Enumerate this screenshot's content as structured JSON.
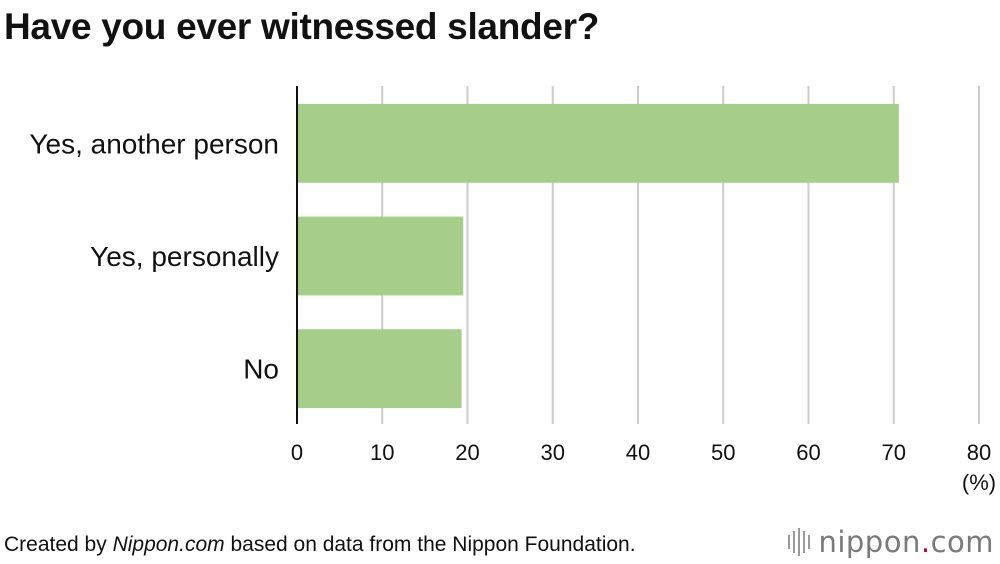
{
  "chart_data": {
    "type": "bar",
    "orientation": "horizontal",
    "title": "Have you ever witnessed slander?",
    "categories": [
      "Yes, another person",
      "Yes, personally",
      "No"
    ],
    "values": [
      70.6,
      19.5,
      19.3
    ],
    "xlim": [
      0,
      80
    ],
    "xticks": [
      "0",
      "10",
      "20",
      "30",
      "40",
      "50",
      "60",
      "70",
      "80"
    ],
    "unit_label": "(%)",
    "grid": true,
    "legend": "none",
    "bar_color": "#a7cd8b",
    "grid_color": "#cccccc",
    "axis_color": "#111111"
  },
  "footer": {
    "prefix": "Created by ",
    "source_name": "Nippon.com",
    "suffix": " based on data from the Nippon Foundation."
  },
  "logo": {
    "text_main": "nippon",
    "text_dot": ".",
    "text_tld": "com",
    "dot_color": "#d3002d"
  }
}
